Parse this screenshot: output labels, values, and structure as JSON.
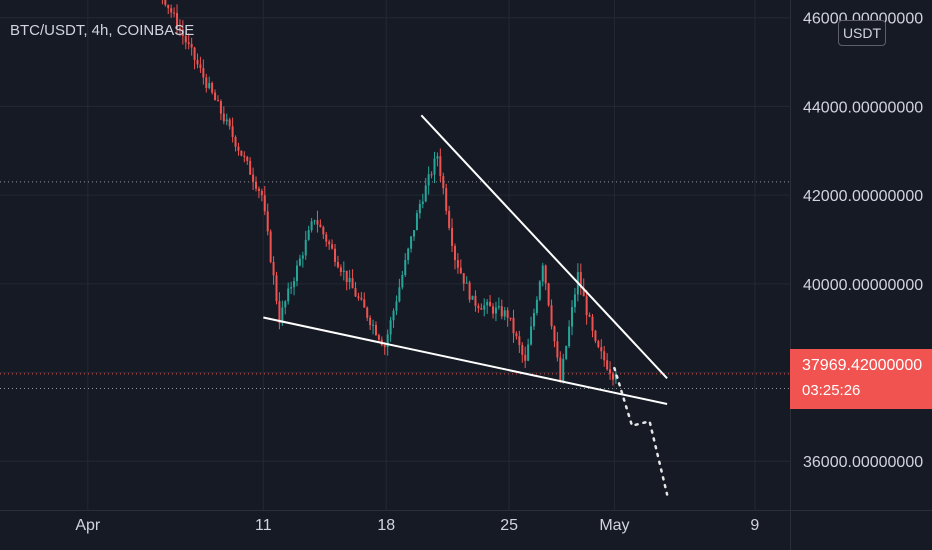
{
  "header": {
    "title": "BTC/USDT, 4h, COINBASE",
    "currency_button": "USDT"
  },
  "price_tag": {
    "price": "37969.42000000",
    "countdown": "03:25:26"
  },
  "colors": {
    "background": "#161a25",
    "up": "#26a69a",
    "down": "#ef5350",
    "grid": "#242832",
    "text": "#d1d4dc",
    "trendline": "#ffffff",
    "price_tag": "#f05350"
  },
  "chart_data": {
    "type": "candlestick",
    "title": "BTC/USDT, 4h, COINBASE",
    "xlabel": "",
    "ylabel": "",
    "x_ticks": [
      "Apr",
      "11",
      "18",
      "25",
      "May",
      "9"
    ],
    "y_ticks": [
      36000,
      38000,
      40000,
      42000,
      44000,
      46000
    ],
    "y_tick_labels": [
      "36000.00000000",
      "38000.00000000",
      "40000.00000000",
      "42000.00000000",
      "44000.00000000",
      "46000.00000000"
    ],
    "ylim": [
      34900,
      46400
    ],
    "xlim": [
      "2022-03-27",
      "2022-05-11"
    ],
    "last_price": 37969.42,
    "grid": true,
    "horizontal_levels": [
      42300,
      37640
    ],
    "key_points": [
      {
        "date": "2022-03-28",
        "price": 47000
      },
      {
        "date": "2022-04-05",
        "price": 46800
      },
      {
        "date": "2022-04-11",
        "price": 42000
      },
      {
        "date": "2022-04-12",
        "price": 39200
      },
      {
        "date": "2022-04-14",
        "price": 41500
      },
      {
        "date": "2022-04-16",
        "price": 40000
      },
      {
        "date": "2022-04-18",
        "price": 38600
      },
      {
        "date": "2022-04-20",
        "price": 41800
      },
      {
        "date": "2022-04-21",
        "price": 42900
      },
      {
        "date": "2022-04-22",
        "price": 40600
      },
      {
        "date": "2022-04-23",
        "price": 39600
      },
      {
        "date": "2022-04-25",
        "price": 39300
      },
      {
        "date": "2022-04-26",
        "price": 38200
      },
      {
        "date": "2022-04-27",
        "price": 40500
      },
      {
        "date": "2022-04-28",
        "price": 37800
      },
      {
        "date": "2022-04-29",
        "price": 40200
      },
      {
        "date": "2022-04-30",
        "price": 38600
      },
      {
        "date": "2022-05-01",
        "price": 37969.42
      }
    ],
    "trendlines": [
      {
        "name": "upper",
        "from": {
          "date": "2022-04-20",
          "price": 43800
        },
        "to": {
          "date": "2022-05-04",
          "price": 37870
        }
      },
      {
        "name": "lower",
        "from": {
          "date": "2022-04-11",
          "price": 39240
        },
        "to": {
          "date": "2022-05-04",
          "price": 37290
        }
      }
    ],
    "projection": [
      {
        "date": "2022-05-01",
        "price": 38100
      },
      {
        "date": "2022-05-02",
        "price": 36800
      },
      {
        "date": "2022-05-03",
        "price": 36900
      },
      {
        "date": "2022-05-04",
        "price": 35250
      }
    ]
  }
}
